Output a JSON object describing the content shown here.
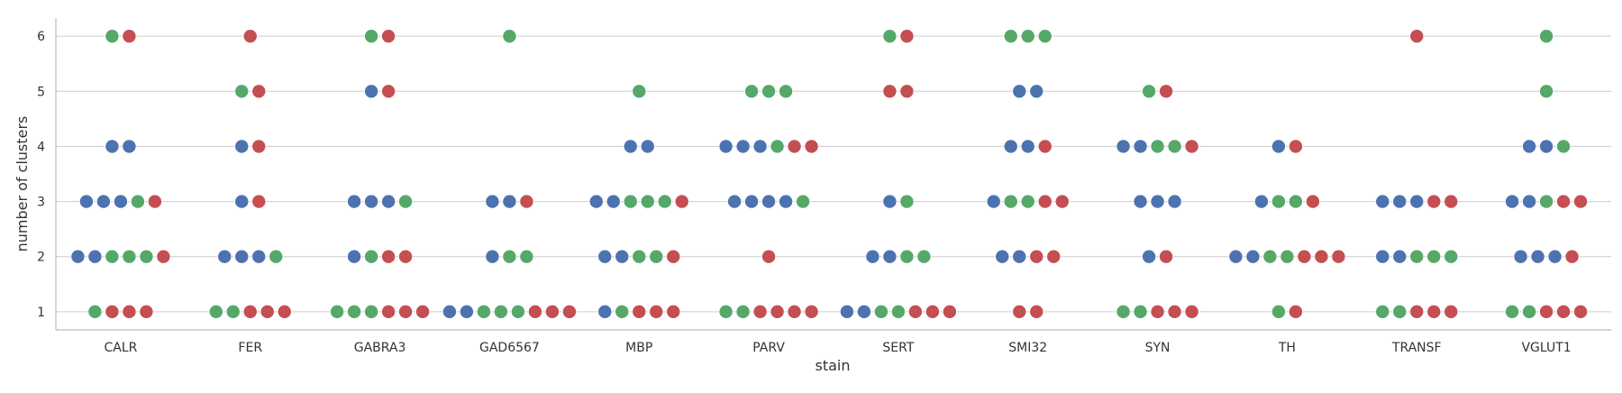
{
  "chart_data": {
    "type": "scatter",
    "subtype": "swarm",
    "xlabel": "stain",
    "ylabel": "number of clusters",
    "categories": [
      "CALR",
      "FER",
      "GABRA3",
      "GAD6567",
      "MBP",
      "PARV",
      "SERT",
      "SMI32",
      "SYN",
      "TH",
      "TRANSF",
      "VGLUT1"
    ],
    "y_ticks": [
      1,
      2,
      3,
      4,
      5,
      6
    ],
    "ylim": [
      0.67,
      6.33
    ],
    "grid": "horizontal",
    "legend": "none",
    "colors": [
      "#4c72b0",
      "#55a868",
      "#c44e52"
    ],
    "points": [
      {
        "category": "CALR",
        "y": 1,
        "series": [
          1,
          2,
          2,
          2
        ]
      },
      {
        "category": "CALR",
        "y": 2,
        "series": [
          0,
          0,
          1,
          1,
          1,
          2
        ]
      },
      {
        "category": "CALR",
        "y": 3,
        "series": [
          0,
          0,
          0,
          1,
          2
        ]
      },
      {
        "category": "CALR",
        "y": 4,
        "series": [
          0,
          0
        ]
      },
      {
        "category": "CALR",
        "y": 6,
        "series": [
          1,
          2
        ]
      },
      {
        "category": "FER",
        "y": 1,
        "series": [
          1,
          1,
          2,
          2,
          2
        ]
      },
      {
        "category": "FER",
        "y": 2,
        "series": [
          0,
          0,
          0,
          1
        ]
      },
      {
        "category": "FER",
        "y": 3,
        "series": [
          0,
          2
        ]
      },
      {
        "category": "FER",
        "y": 4,
        "series": [
          0,
          2
        ]
      },
      {
        "category": "FER",
        "y": 5,
        "series": [
          1,
          2
        ]
      },
      {
        "category": "FER",
        "y": 6,
        "series": [
          2
        ]
      },
      {
        "category": "GABRA3",
        "y": 1,
        "series": [
          1,
          1,
          1,
          2,
          2,
          2
        ]
      },
      {
        "category": "GABRA3",
        "y": 2,
        "series": [
          0,
          1,
          2,
          2
        ]
      },
      {
        "category": "GABRA3",
        "y": 3,
        "series": [
          0,
          0,
          0,
          1
        ]
      },
      {
        "category": "GABRA3",
        "y": 5,
        "series": [
          0,
          2
        ]
      },
      {
        "category": "GABRA3",
        "y": 6,
        "series": [
          1,
          2
        ]
      },
      {
        "category": "GAD6567",
        "y": 1,
        "series": [
          0,
          0,
          1,
          1,
          1,
          2,
          2,
          2
        ]
      },
      {
        "category": "GAD6567",
        "y": 2,
        "series": [
          0,
          1,
          1
        ]
      },
      {
        "category": "GAD6567",
        "y": 3,
        "series": [
          0,
          0,
          2
        ]
      },
      {
        "category": "GAD6567",
        "y": 6,
        "series": [
          1
        ]
      },
      {
        "category": "MBP",
        "y": 1,
        "series": [
          0,
          1,
          2,
          2,
          2
        ]
      },
      {
        "category": "MBP",
        "y": 2,
        "series": [
          0,
          0,
          1,
          1,
          2
        ]
      },
      {
        "category": "MBP",
        "y": 3,
        "series": [
          0,
          0,
          1,
          1,
          1,
          2
        ]
      },
      {
        "category": "MBP",
        "y": 4,
        "series": [
          0,
          0
        ]
      },
      {
        "category": "MBP",
        "y": 5,
        "series": [
          1
        ]
      },
      {
        "category": "PARV",
        "y": 1,
        "series": [
          1,
          1,
          2,
          2,
          2,
          2
        ]
      },
      {
        "category": "PARV",
        "y": 2,
        "series": [
          2
        ]
      },
      {
        "category": "PARV",
        "y": 3,
        "series": [
          0,
          0,
          0,
          0,
          1
        ]
      },
      {
        "category": "PARV",
        "y": 4,
        "series": [
          0,
          0,
          0,
          1,
          2,
          2
        ]
      },
      {
        "category": "PARV",
        "y": 5,
        "series": [
          1,
          1,
          1
        ]
      },
      {
        "category": "SERT",
        "y": 1,
        "series": [
          0,
          0,
          1,
          1,
          2,
          2,
          2
        ]
      },
      {
        "category": "SERT",
        "y": 2,
        "series": [
          0,
          0,
          1,
          1
        ]
      },
      {
        "category": "SERT",
        "y": 3,
        "series": [
          0,
          1
        ]
      },
      {
        "category": "SERT",
        "y": 5,
        "series": [
          2,
          2
        ]
      },
      {
        "category": "SERT",
        "y": 6,
        "series": [
          1,
          2
        ]
      },
      {
        "category": "SMI32",
        "y": 1,
        "series": [
          2,
          2
        ]
      },
      {
        "category": "SMI32",
        "y": 2,
        "series": [
          0,
          0,
          2,
          2
        ]
      },
      {
        "category": "SMI32",
        "y": 3,
        "series": [
          0,
          1,
          1,
          2,
          2
        ]
      },
      {
        "category": "SMI32",
        "y": 4,
        "series": [
          0,
          0,
          2
        ]
      },
      {
        "category": "SMI32",
        "y": 5,
        "series": [
          0,
          0
        ]
      },
      {
        "category": "SMI32",
        "y": 6,
        "series": [
          1,
          1,
          1
        ]
      },
      {
        "category": "SYN",
        "y": 1,
        "series": [
          1,
          1,
          2,
          2,
          2
        ]
      },
      {
        "category": "SYN",
        "y": 2,
        "series": [
          0,
          2
        ]
      },
      {
        "category": "SYN",
        "y": 3,
        "series": [
          0,
          0,
          0
        ]
      },
      {
        "category": "SYN",
        "y": 4,
        "series": [
          0,
          0,
          1,
          1,
          2
        ]
      },
      {
        "category": "SYN",
        "y": 5,
        "series": [
          1,
          2
        ]
      },
      {
        "category": "TH",
        "y": 1,
        "series": [
          1,
          2
        ]
      },
      {
        "category": "TH",
        "y": 2,
        "series": [
          0,
          0,
          1,
          1,
          2,
          2,
          2
        ]
      },
      {
        "category": "TH",
        "y": 3,
        "series": [
          0,
          1,
          1,
          2
        ]
      },
      {
        "category": "TH",
        "y": 4,
        "series": [
          0,
          2
        ]
      },
      {
        "category": "TRANSF",
        "y": 1,
        "series": [
          1,
          1,
          2,
          2,
          2
        ]
      },
      {
        "category": "TRANSF",
        "y": 2,
        "series": [
          0,
          0,
          1,
          1,
          1
        ]
      },
      {
        "category": "TRANSF",
        "y": 3,
        "series": [
          0,
          0,
          0,
          2,
          2
        ]
      },
      {
        "category": "TRANSF",
        "y": 6,
        "series": [
          2
        ]
      },
      {
        "category": "VGLUT1",
        "y": 1,
        "series": [
          1,
          1,
          2,
          2,
          2
        ]
      },
      {
        "category": "VGLUT1",
        "y": 2,
        "series": [
          0,
          0,
          0,
          2
        ]
      },
      {
        "category": "VGLUT1",
        "y": 3,
        "series": [
          0,
          0,
          1,
          2,
          2
        ]
      },
      {
        "category": "VGLUT1",
        "y": 4,
        "series": [
          0,
          0,
          1
        ]
      },
      {
        "category": "VGLUT1",
        "y": 5,
        "series": [
          1
        ]
      },
      {
        "category": "VGLUT1",
        "y": 6,
        "series": [
          1
        ]
      }
    ]
  }
}
